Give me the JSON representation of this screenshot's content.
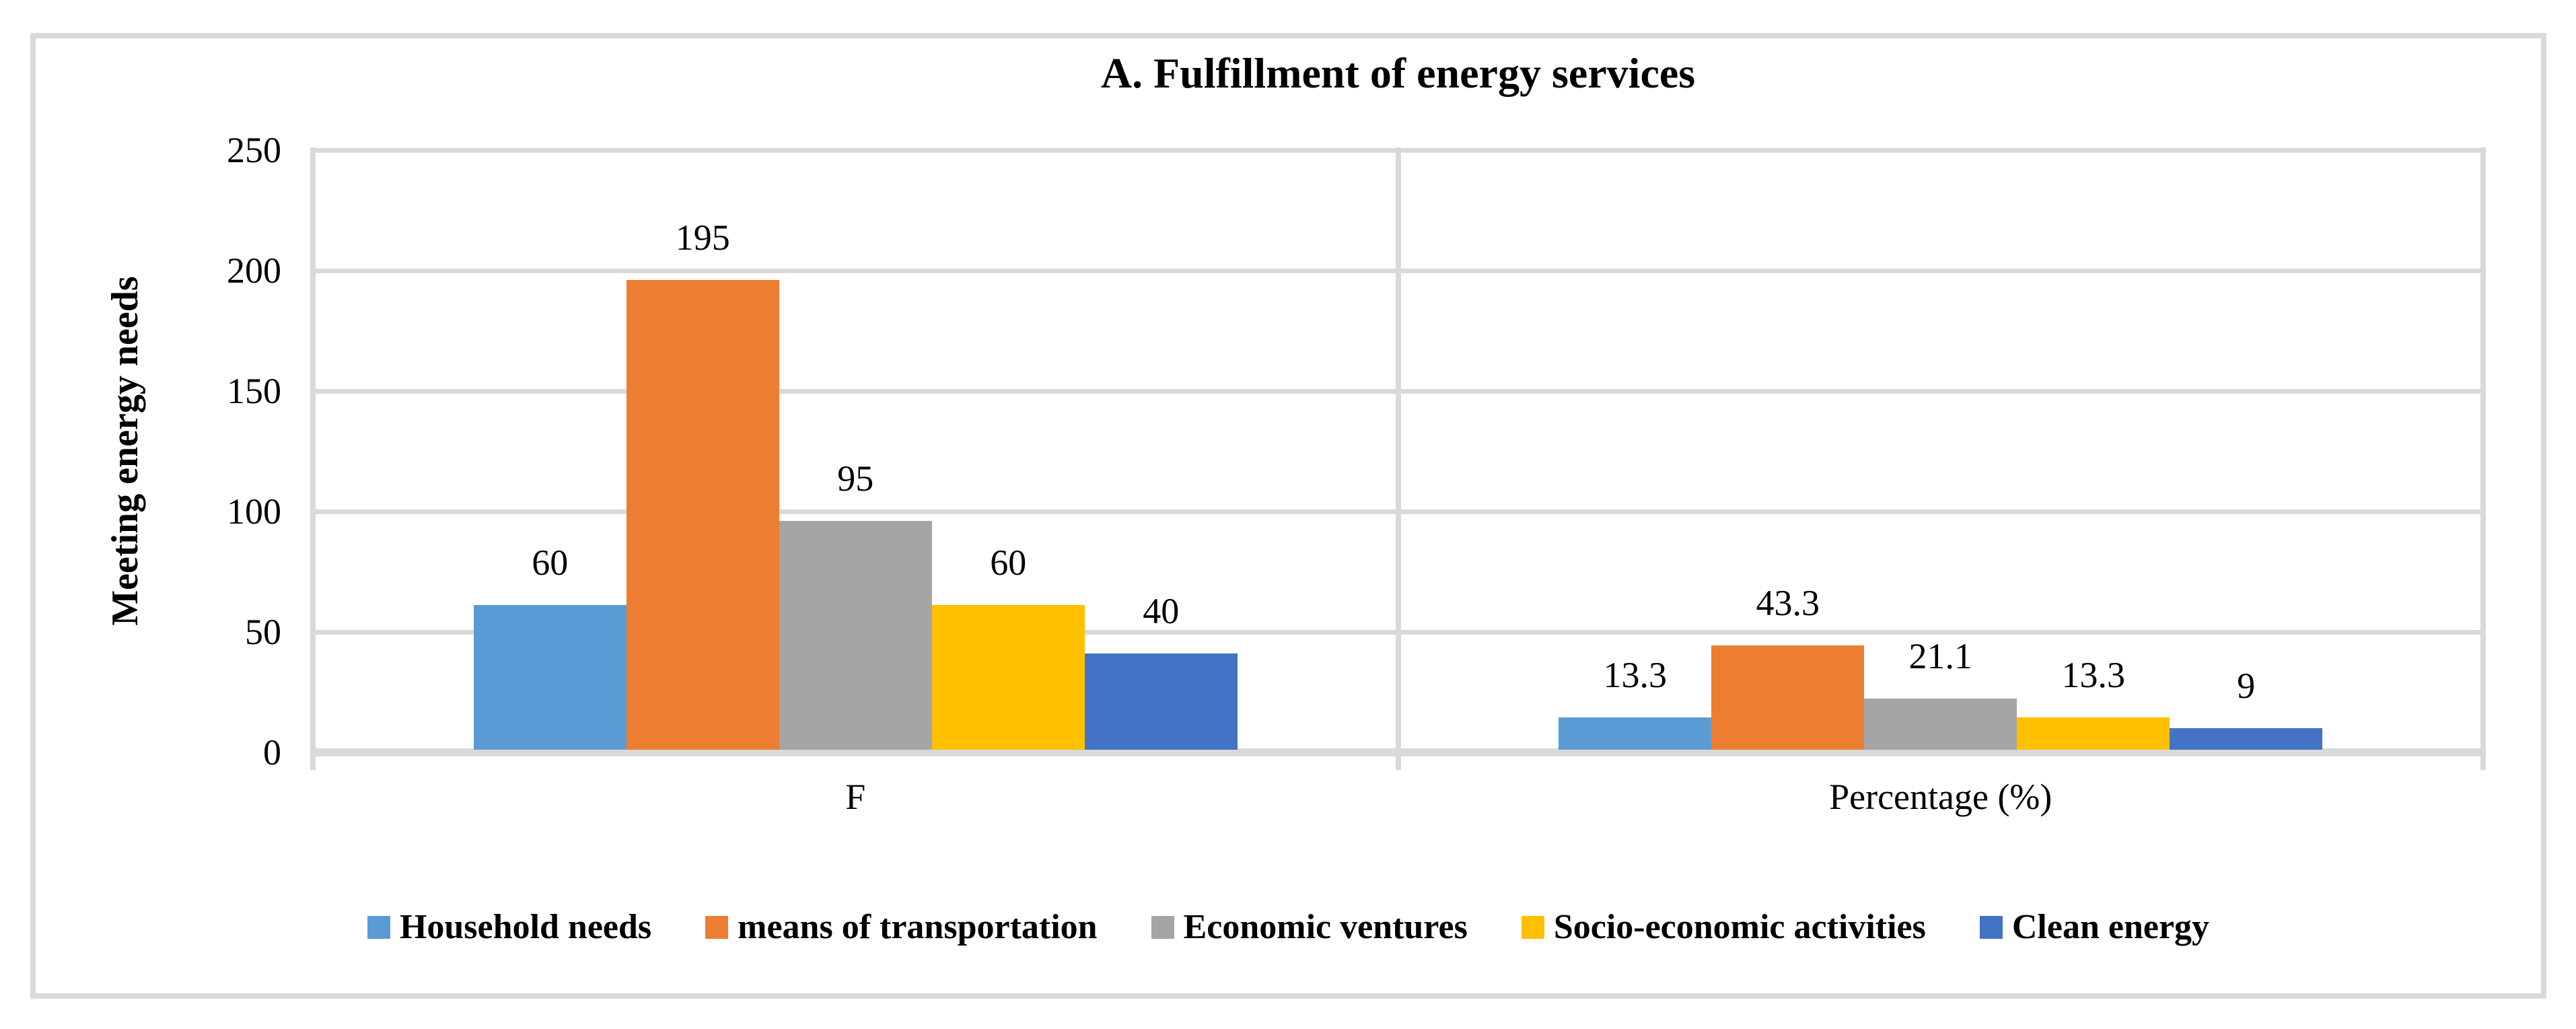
{
  "chart_data": {
    "type": "bar",
    "title": "A. Fulfillment of energy services",
    "ylabel": "Meeting energy needs",
    "xlabel": "",
    "categories": [
      "F",
      "Percentage (%)"
    ],
    "series": [
      {
        "name": "Household needs",
        "color": "#5B9BD5",
        "values": [
          60,
          13.3
        ]
      },
      {
        "name": "means of transportation",
        "color": "#ED7D31",
        "values": [
          195,
          43.3
        ]
      },
      {
        "name": "Economic ventures",
        "color": "#A5A5A5",
        "values": [
          95,
          21.1
        ]
      },
      {
        "name": "Socio-economic activities",
        "color": "#FFC000",
        "values": [
          60,
          13.3
        ]
      },
      {
        "name": "Clean energy",
        "color": "#4472C4",
        "values": [
          40,
          9
        ]
      }
    ],
    "data_labels": [
      [
        "60",
        "195",
        "95",
        "60",
        "40"
      ],
      [
        "13.3",
        "43.3",
        "21.1",
        "13.3",
        "9"
      ]
    ],
    "y_axis": {
      "min": 0,
      "max": 250,
      "step": 50,
      "tick_labels": [
        "0",
        "50",
        "100",
        "150",
        "200",
        "250"
      ]
    },
    "grid": true,
    "legend_position": "bottom",
    "colors": {
      "gridline": "#D9D9D9",
      "frame_border": "#D9D9D9",
      "text": "#000000"
    }
  }
}
